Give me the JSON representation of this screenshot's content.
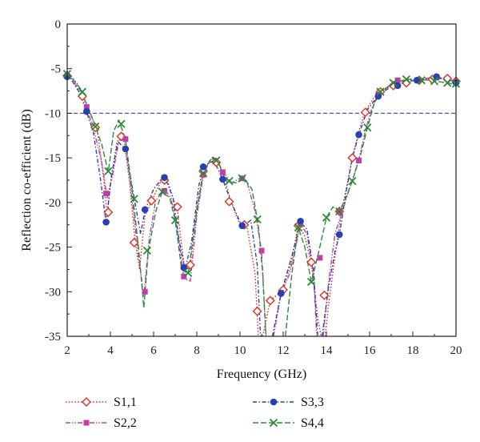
{
  "chart_data": {
    "type": "line",
    "title": "",
    "xlabel": "Frequency (GHz)",
    "ylabel": "Reflection co-efficient (dB)",
    "xlim": [
      2,
      20
    ],
    "ylim": [
      -35,
      0
    ],
    "xticks": [
      2,
      4,
      6,
      8,
      10,
      12,
      14,
      16,
      18,
      20
    ],
    "yticks": [
      0,
      -5,
      -10,
      -15,
      -20,
      -25,
      -30,
      -35
    ],
    "reference_line": {
      "y": -10,
      "color": "#2f4fa8",
      "style": "dashed"
    },
    "grid": false,
    "legend_position": "bottom",
    "series": [
      {
        "name": "S1,1",
        "color": "#e03020",
        "marker": "diamond-open",
        "line_style": "dotted",
        "points": [
          [
            2.0,
            -5.8
          ],
          [
            2.7,
            -8.1
          ],
          [
            3.3,
            -11.6
          ],
          [
            3.9,
            -21.1
          ],
          [
            4.5,
            -12.6
          ],
          [
            5.1,
            -24.5
          ],
          [
            5.9,
            -19.8
          ],
          [
            6.5,
            -17.5
          ],
          [
            7.1,
            -20.5
          ],
          [
            7.7,
            -27.0
          ],
          [
            8.3,
            -16.5
          ],
          [
            8.9,
            -15.5
          ],
          [
            9.5,
            -19.9
          ],
          [
            10.2,
            -22.5
          ],
          [
            10.8,
            -32.2
          ],
          [
            11.4,
            -31.0
          ],
          [
            12.0,
            -29.8
          ],
          [
            12.7,
            -22.6
          ],
          [
            13.3,
            -26.7
          ],
          [
            13.9,
            -30.4
          ],
          [
            14.6,
            -21.0
          ],
          [
            15.2,
            -15.0
          ],
          [
            15.8,
            -9.9
          ],
          [
            16.5,
            -7.6
          ],
          [
            17.1,
            -6.9
          ],
          [
            17.7,
            -6.6
          ],
          [
            18.3,
            -6.3
          ],
          [
            18.9,
            -6.2
          ],
          [
            19.6,
            -6.1
          ],
          [
            20.0,
            -6.4
          ]
        ],
        "line": [
          [
            2.0,
            -5.3
          ],
          [
            2.5,
            -6.8
          ],
          [
            3.0,
            -9.5
          ],
          [
            3.4,
            -12.0
          ],
          [
            3.7,
            -17.5
          ],
          [
            3.85,
            -21.5
          ],
          [
            4.0,
            -18.0
          ],
          [
            4.3,
            -13.2
          ],
          [
            4.6,
            -12.4
          ],
          [
            4.9,
            -18.0
          ],
          [
            5.15,
            -24.5
          ],
          [
            5.35,
            -27.5
          ],
          [
            5.6,
            -21.5
          ],
          [
            5.9,
            -19.9
          ],
          [
            6.3,
            -17.8
          ],
          [
            6.6,
            -17.2
          ],
          [
            6.9,
            -19.5
          ],
          [
            7.1,
            -20.8
          ],
          [
            7.45,
            -27.8
          ],
          [
            7.7,
            -27.0
          ],
          [
            8.0,
            -20.5
          ],
          [
            8.3,
            -16.5
          ],
          [
            8.7,
            -15.0
          ],
          [
            9.0,
            -15.4
          ],
          [
            9.3,
            -17.5
          ],
          [
            9.6,
            -20.0
          ],
          [
            10.0,
            -22.5
          ],
          [
            10.3,
            -22.4
          ],
          [
            10.7,
            -28.0
          ],
          [
            10.85,
            -35.0
          ]
        ],
        "line2": [
          [
            11.05,
            -35.0
          ],
          [
            11.4,
            -31.0
          ],
          [
            12.0,
            -29.8
          ],
          [
            12.4,
            -26.5
          ],
          [
            12.7,
            -22.4
          ],
          [
            13.0,
            -23.8
          ],
          [
            13.3,
            -26.8
          ],
          [
            13.6,
            -33.0
          ],
          [
            13.75,
            -35.0
          ]
        ],
        "line3": [
          [
            13.95,
            -35.0
          ],
          [
            14.1,
            -31.5
          ],
          [
            14.4,
            -26.0
          ],
          [
            14.7,
            -21.0
          ],
          [
            15.0,
            -17.5
          ],
          [
            15.2,
            -15.0
          ],
          [
            15.5,
            -12.0
          ],
          [
            15.8,
            -9.8
          ],
          [
            16.2,
            -8.2
          ],
          [
            16.7,
            -7.3
          ],
          [
            17.3,
            -6.8
          ],
          [
            18.0,
            -6.3
          ],
          [
            18.6,
            -6.1
          ],
          [
            19.2,
            -6.0
          ],
          [
            19.6,
            -6.2
          ],
          [
            20.0,
            -6.5
          ]
        ]
      },
      {
        "name": "S2,2",
        "color": "#c040a8",
        "marker": "square",
        "line_style": "dash-dot-dot",
        "points": [
          [
            2.0,
            -5.8
          ],
          [
            2.9,
            -9.3
          ],
          [
            3.8,
            -19.0
          ],
          [
            4.7,
            -12.9
          ],
          [
            5.6,
            -30.0
          ],
          [
            6.5,
            -18.7
          ],
          [
            7.4,
            -28.3
          ],
          [
            8.3,
            -16.9
          ],
          [
            9.2,
            -16.6
          ],
          [
            10.1,
            -17.3
          ],
          [
            11.0,
            -25.4
          ],
          [
            11.9,
            -30.1
          ],
          [
            12.8,
            -22.4
          ],
          [
            13.7,
            -26.2
          ],
          [
            14.6,
            -21.0
          ],
          [
            15.5,
            -15.3
          ],
          [
            16.4,
            -7.9
          ],
          [
            17.3,
            -6.3
          ],
          [
            18.2,
            -6.3
          ],
          [
            19.1,
            -6.0
          ],
          [
            20.0,
            -6.5
          ]
        ],
        "line": [
          [
            2.0,
            -5.5
          ],
          [
            2.6,
            -7.5
          ],
          [
            3.2,
            -11.5
          ],
          [
            3.6,
            -15.5
          ],
          [
            3.85,
            -19.5
          ],
          [
            4.1,
            -17.0
          ],
          [
            4.4,
            -13.0
          ],
          [
            4.7,
            -13.0
          ],
          [
            5.0,
            -19.5
          ],
          [
            5.3,
            -26.0
          ],
          [
            5.55,
            -30.5
          ],
          [
            5.8,
            -24.0
          ],
          [
            6.1,
            -19.8
          ],
          [
            6.5,
            -18.5
          ],
          [
            6.8,
            -19.5
          ],
          [
            7.1,
            -23.0
          ],
          [
            7.4,
            -28.5
          ],
          [
            7.7,
            -28.8
          ],
          [
            8.0,
            -21.5
          ],
          [
            8.3,
            -17.0
          ],
          [
            8.6,
            -15.3
          ],
          [
            8.9,
            -15.0
          ],
          [
            9.2,
            -16.5
          ],
          [
            9.6,
            -17.8
          ],
          [
            10.0,
            -17.3
          ],
          [
            10.3,
            -17.5
          ],
          [
            10.7,
            -21.0
          ],
          [
            11.0,
            -25.5
          ],
          [
            11.2,
            -35.0
          ]
        ],
        "line2": [
          [
            11.55,
            -35.0
          ],
          [
            11.9,
            -30.2
          ],
          [
            12.3,
            -28.0
          ],
          [
            12.8,
            -22.5
          ],
          [
            13.1,
            -23.5
          ],
          [
            13.4,
            -28.0
          ],
          [
            13.55,
            -35.0
          ]
        ],
        "line3": [
          [
            13.85,
            -35.0
          ],
          [
            14.1,
            -29.0
          ],
          [
            14.4,
            -23.5
          ],
          [
            14.8,
            -20.5
          ],
          [
            15.2,
            -17.5
          ],
          [
            15.5,
            -15.2
          ],
          [
            15.8,
            -12.0
          ],
          [
            16.1,
            -9.5
          ],
          [
            16.4,
            -7.8
          ],
          [
            16.9,
            -7.0
          ],
          [
            17.5,
            -6.4
          ],
          [
            18.2,
            -6.2
          ],
          [
            19.0,
            -6.0
          ],
          [
            20.0,
            -6.4
          ]
        ]
      },
      {
        "name": "S3,3",
        "color": "#2840b0",
        "marker": "circle",
        "line_style": "dash-dot",
        "points": [
          [
            2.0,
            -5.9
          ],
          [
            2.9,
            -9.8
          ],
          [
            3.8,
            -22.2
          ],
          [
            4.7,
            -14.0
          ],
          [
            5.6,
            -20.8
          ],
          [
            6.5,
            -17.2
          ],
          [
            7.4,
            -27.3
          ],
          [
            8.3,
            -16.0
          ],
          [
            9.2,
            -17.4
          ],
          [
            10.1,
            -22.6
          ],
          [
            11.9,
            -30.2
          ],
          [
            12.8,
            -22.1
          ],
          [
            14.6,
            -23.6
          ],
          [
            15.5,
            -12.4
          ],
          [
            16.4,
            -8.1
          ],
          [
            17.3,
            -6.9
          ],
          [
            18.2,
            -6.3
          ],
          [
            19.1,
            -5.9
          ],
          [
            20.0,
            -6.6
          ]
        ],
        "line": [
          [
            2.0,
            -5.5
          ],
          [
            2.6,
            -7.8
          ],
          [
            3.2,
            -12.0
          ],
          [
            3.55,
            -17.5
          ],
          [
            3.8,
            -22.3
          ],
          [
            4.05,
            -17.0
          ],
          [
            4.35,
            -13.2
          ],
          [
            4.7,
            -14.0
          ],
          [
            5.1,
            -19.5
          ],
          [
            5.4,
            -23.5
          ],
          [
            5.6,
            -20.9
          ],
          [
            6.0,
            -18.5
          ],
          [
            6.5,
            -17.0
          ],
          [
            6.9,
            -19.5
          ],
          [
            7.2,
            -24.5
          ],
          [
            7.45,
            -27.5
          ],
          [
            7.75,
            -24.5
          ],
          [
            8.1,
            -18.0
          ],
          [
            8.4,
            -15.8
          ],
          [
            8.8,
            -15.3
          ],
          [
            9.2,
            -17.4
          ],
          [
            9.6,
            -20.0
          ],
          [
            10.1,
            -22.7
          ],
          [
            10.5,
            -22.0
          ],
          [
            10.8,
            -27.0
          ],
          [
            10.95,
            -35.0
          ]
        ],
        "line2": [
          [
            11.5,
            -35.0
          ],
          [
            11.9,
            -30.2
          ],
          [
            12.4,
            -26.0
          ],
          [
            12.8,
            -22.2
          ],
          [
            13.1,
            -23.0
          ],
          [
            13.4,
            -27.5
          ],
          [
            13.6,
            -35.0
          ]
        ],
        "line3": [
          [
            13.8,
            -35.0
          ],
          [
            14.1,
            -29.5
          ],
          [
            14.4,
            -25.5
          ],
          [
            14.6,
            -23.7
          ],
          [
            14.9,
            -19.0
          ],
          [
            15.2,
            -15.0
          ],
          [
            15.5,
            -12.4
          ],
          [
            15.9,
            -9.6
          ],
          [
            16.4,
            -8.0
          ],
          [
            17.0,
            -7.0
          ],
          [
            17.6,
            -6.5
          ],
          [
            18.2,
            -6.3
          ],
          [
            19.1,
            -5.9
          ],
          [
            20.0,
            -6.7
          ]
        ]
      },
      {
        "name": "S4,4",
        "color": "#2a8a3a",
        "marker": "x",
        "line_style": "long-dash",
        "points": [
          [
            2.0,
            -5.6
          ],
          [
            2.7,
            -7.6
          ],
          [
            3.3,
            -11.5
          ],
          [
            3.9,
            -16.5
          ],
          [
            4.5,
            -11.2
          ],
          [
            5.1,
            -19.6
          ],
          [
            5.7,
            -25.4
          ],
          [
            6.4,
            -18.8
          ],
          [
            7.0,
            -22.0
          ],
          [
            7.6,
            -27.9
          ],
          [
            8.3,
            -16.7
          ],
          [
            8.9,
            -15.3
          ],
          [
            9.5,
            -17.6
          ],
          [
            10.1,
            -17.3
          ],
          [
            10.8,
            -21.9
          ],
          [
            12.7,
            -22.8
          ],
          [
            13.3,
            -28.9
          ],
          [
            14.0,
            -21.7
          ],
          [
            14.6,
            -21.0
          ],
          [
            15.2,
            -17.6
          ],
          [
            15.9,
            -11.6
          ],
          [
            16.5,
            -7.6
          ],
          [
            17.1,
            -6.6
          ],
          [
            17.7,
            -6.2
          ],
          [
            18.4,
            -6.3
          ],
          [
            19.0,
            -6.4
          ],
          [
            19.6,
            -6.6
          ],
          [
            20.0,
            -6.7
          ]
        ],
        "line": [
          [
            2.0,
            -5.4
          ],
          [
            2.6,
            -7.2
          ],
          [
            3.2,
            -10.8
          ],
          [
            3.6,
            -13.5
          ],
          [
            3.9,
            -16.6
          ],
          [
            4.15,
            -12.0
          ],
          [
            4.4,
            -10.8
          ],
          [
            4.7,
            -13.0
          ],
          [
            5.0,
            -18.5
          ],
          [
            5.3,
            -25.0
          ],
          [
            5.55,
            -31.8
          ],
          [
            5.75,
            -25.5
          ],
          [
            6.1,
            -21.0
          ],
          [
            6.4,
            -18.8
          ],
          [
            6.75,
            -19.5
          ],
          [
            7.0,
            -22.0
          ],
          [
            7.3,
            -27.5
          ],
          [
            7.6,
            -28.0
          ],
          [
            8.0,
            -21.0
          ],
          [
            8.3,
            -16.7
          ],
          [
            8.7,
            -15.0
          ],
          [
            9.0,
            -15.6
          ],
          [
            9.4,
            -17.7
          ],
          [
            9.8,
            -17.8
          ],
          [
            10.2,
            -17.3
          ],
          [
            10.55,
            -18.5
          ],
          [
            10.85,
            -22.5
          ],
          [
            11.05,
            -28.0
          ],
          [
            11.2,
            -35.0
          ]
        ],
        "line2": [
          [
            12.1,
            -35.0
          ],
          [
            12.4,
            -28.0
          ],
          [
            12.7,
            -22.8
          ],
          [
            13.0,
            -25.0
          ],
          [
            13.3,
            -28.9
          ],
          [
            13.6,
            -26.0
          ],
          [
            14.0,
            -21.7
          ],
          [
            14.3,
            -20.5
          ],
          [
            14.6,
            -21.0
          ],
          [
            14.9,
            -19.5
          ],
          [
            15.2,
            -17.6
          ],
          [
            15.6,
            -14.5
          ],
          [
            15.9,
            -11.6
          ],
          [
            16.2,
            -9.0
          ],
          [
            16.5,
            -7.6
          ],
          [
            17.1,
            -6.6
          ],
          [
            17.7,
            -6.2
          ],
          [
            18.4,
            -6.2
          ],
          [
            19.0,
            -6.4
          ],
          [
            19.6,
            -6.6
          ],
          [
            20.0,
            -6.8
          ]
        ]
      }
    ]
  }
}
